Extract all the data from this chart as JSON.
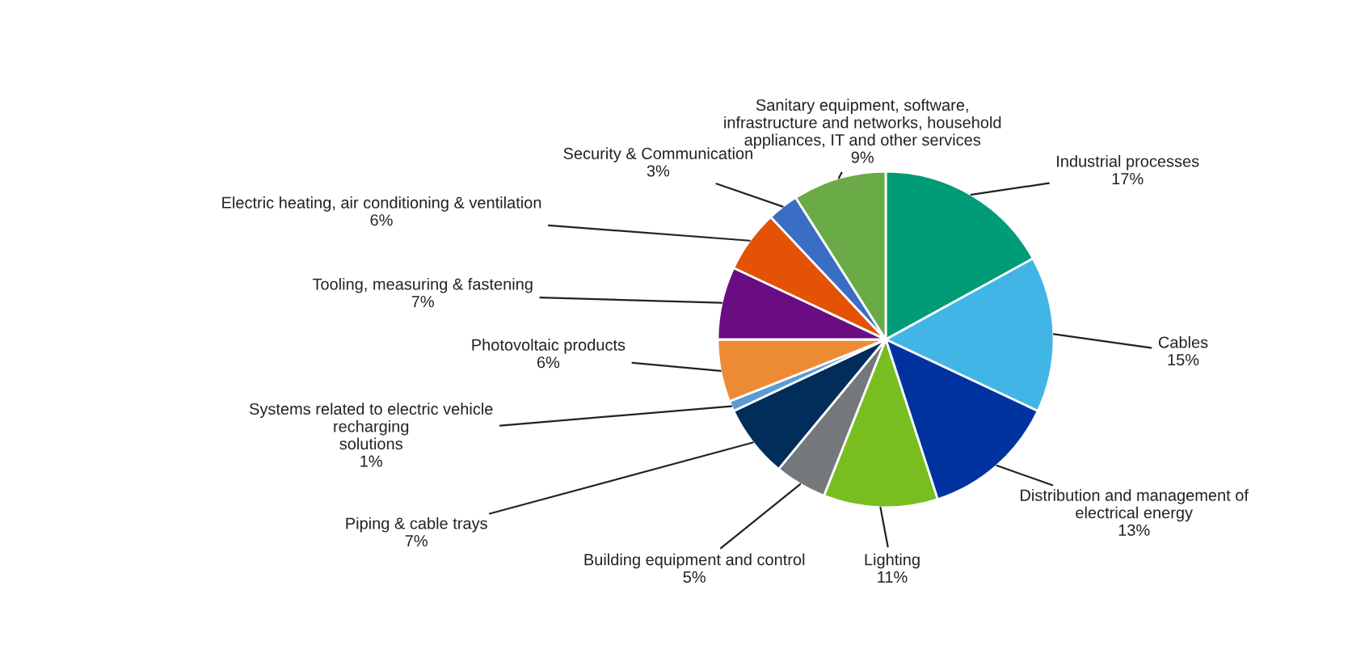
{
  "chart_data": {
    "type": "pie",
    "categories": [
      "Industrial processes",
      "Cables",
      "Distribution and management of\nelectrical energy",
      "Lighting",
      "Building equipment and control",
      "Piping & cable trays",
      "Systems related to electric vehicle\nrecharging\nsolutions",
      "Photovoltaic products",
      "Tooling, measuring & fastening",
      "Electric heating, air conditioning & ventilation",
      "Security & Communication",
      "Sanitary equipment, software,\ninfrastructure and networks, household\nappliances, IT and other services"
    ],
    "values": [
      17,
      15,
      13,
      11,
      5,
      7,
      1,
      6,
      7,
      6,
      3,
      9
    ],
    "value_labels": [
      "17%",
      "15%",
      "13%",
      "11%",
      "5%",
      "7%",
      "1%",
      "6%",
      "7%",
      "6%",
      "3%",
      "9%"
    ],
    "colors": [
      "#009b77",
      "#41b6e6",
      "#0033a0",
      "#78be20",
      "#75787b",
      "#002d5a",
      "#5b9bd5",
      "#ed8b35",
      "#6a0d83",
      "#e35205",
      "#3a6dc4",
      "#6aab47"
    ]
  }
}
